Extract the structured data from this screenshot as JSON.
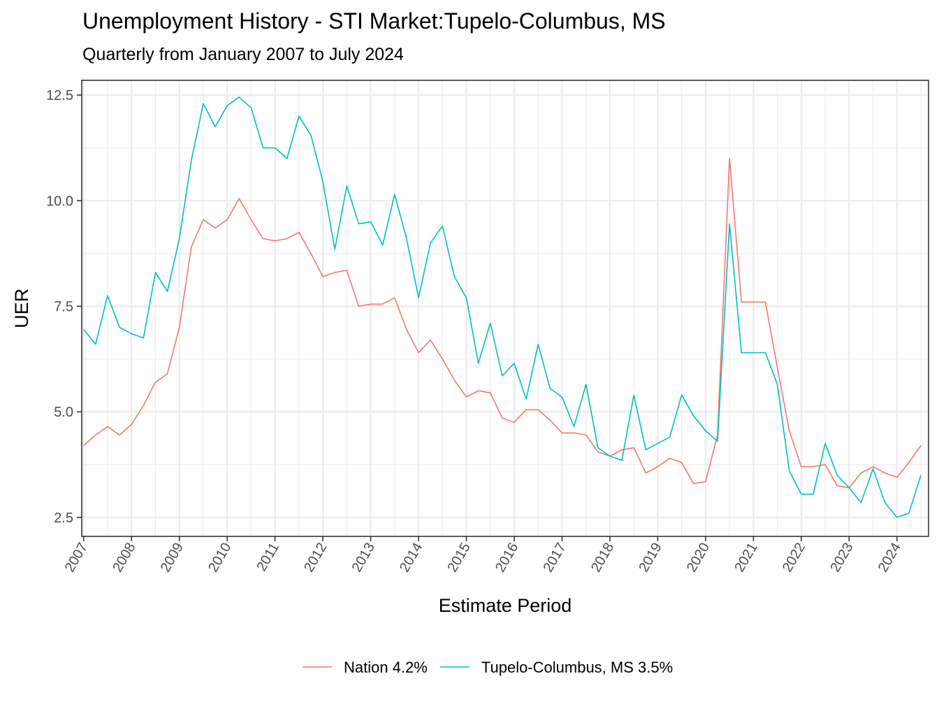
{
  "chart_data": {
    "type": "line",
    "title": "Unemployment History - STI Market:Tupelo-Columbus, MS",
    "subtitle": "Quarterly from January 2007 to July 2024",
    "xlabel": "Estimate Period",
    "ylabel": "UER",
    "x_start": 2007.0,
    "x_step": 0.25,
    "xlim": [
      2006.96,
      2024.66
    ],
    "ylim": [
      2.05,
      12.85
    ],
    "x_ticks": [
      2007,
      2008,
      2009,
      2010,
      2011,
      2012,
      2013,
      2014,
      2015,
      2016,
      2017,
      2018,
      2019,
      2020,
      2021,
      2022,
      2023,
      2024
    ],
    "x_tick_labels": [
      "2007",
      "2008",
      "2009",
      "2010",
      "2011",
      "2012",
      "2013",
      "2014",
      "2015",
      "2016",
      "2017",
      "2018",
      "2019",
      "2020",
      "2021",
      "2022",
      "2023",
      "2024"
    ],
    "y_ticks": [
      2.5,
      5.0,
      7.5,
      10.0,
      12.5
    ],
    "y_tick_labels": [
      "2.5",
      "5.0",
      "7.5",
      "10.0",
      "12.5"
    ],
    "grid": true,
    "legend_position": "bottom",
    "series": [
      {
        "name": "Nation 4.2%",
        "color": "#F8766D",
        "values": [
          4.2,
          4.45,
          4.65,
          4.45,
          4.7,
          5.15,
          5.7,
          5.9,
          7.0,
          8.9,
          9.55,
          9.35,
          9.55,
          10.05,
          9.55,
          9.1,
          9.05,
          9.1,
          9.25,
          8.75,
          8.2,
          8.3,
          8.35,
          7.5,
          7.55,
          7.55,
          7.7,
          6.95,
          6.4,
          6.7,
          6.25,
          5.75,
          5.35,
          5.5,
          5.45,
          4.85,
          4.75,
          5.05,
          5.05,
          4.8,
          4.5,
          4.5,
          4.45,
          4.05,
          3.95,
          4.1,
          4.15,
          3.55,
          3.7,
          3.9,
          3.8,
          3.3,
          3.35,
          4.45,
          11.0,
          7.6,
          7.6,
          7.6,
          6.05,
          4.55,
          3.7,
          3.7,
          3.75,
          3.25,
          3.2,
          3.55,
          3.7,
          3.55,
          3.45,
          3.8,
          4.2
        ]
      },
      {
        "name": "Tupelo-Columbus, MS 3.5%",
        "color": "#00BFC4",
        "values": [
          6.95,
          6.6,
          7.75,
          7.0,
          6.85,
          6.75,
          8.3,
          7.85,
          9.1,
          10.95,
          12.3,
          11.75,
          12.25,
          12.45,
          12.2,
          11.25,
          11.25,
          11.0,
          12.0,
          11.55,
          10.45,
          8.85,
          10.35,
          9.45,
          9.5,
          8.95,
          10.15,
          9.1,
          7.7,
          9.0,
          9.4,
          8.2,
          7.7,
          6.15,
          7.1,
          5.85,
          6.15,
          5.3,
          6.6,
          5.55,
          5.35,
          4.65,
          5.65,
          4.15,
          3.95,
          3.85,
          5.4,
          4.1,
          4.25,
          4.4,
          5.4,
          4.9,
          4.55,
          4.3,
          9.45,
          6.4,
          6.4,
          6.4,
          5.65,
          3.6,
          3.05,
          3.05,
          4.25,
          3.5,
          3.2,
          2.85,
          3.65,
          2.85,
          2.5,
          2.6,
          3.5
        ]
      }
    ]
  }
}
